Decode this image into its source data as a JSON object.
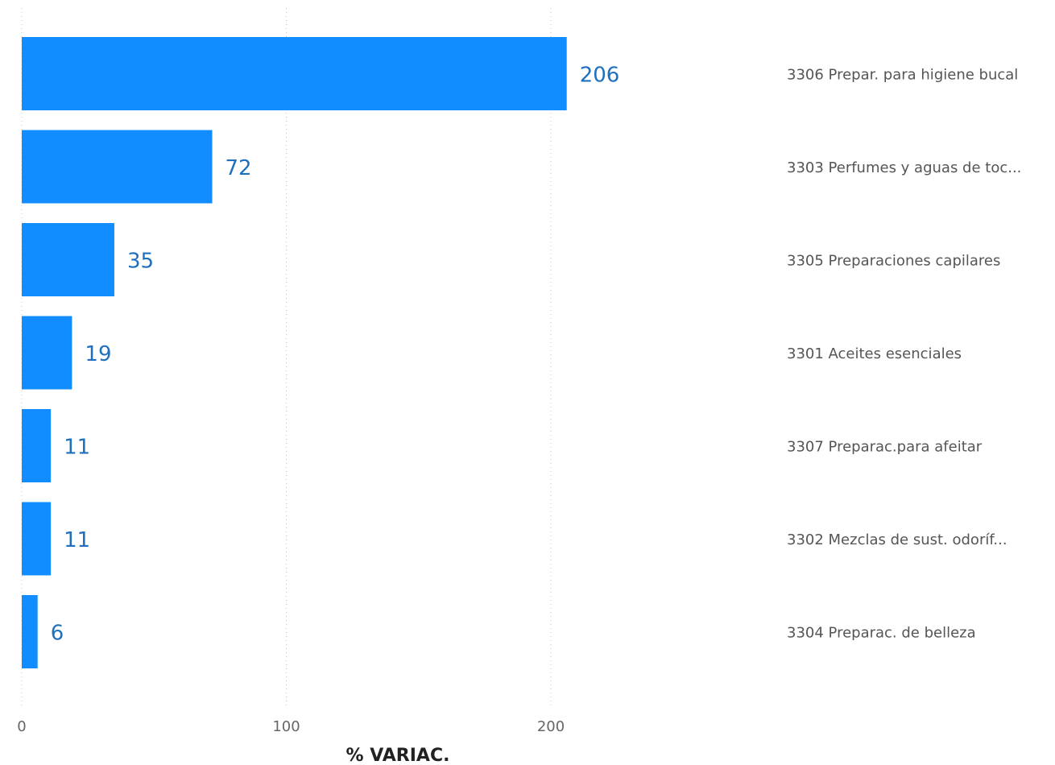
{
  "chart_data": {
    "type": "bar",
    "orientation": "horizontal",
    "categories": [
      "3306 Prepar. para higiene bucal",
      "3303 Perfumes y aguas de toc...",
      "3305 Preparaciones capilares",
      "3301 Aceites esenciales",
      "3307 Preparac.para afeitar",
      "3302 Mezclas de sust. odoríf...",
      "3304 Preparac. de belleza"
    ],
    "values": [
      206,
      72,
      35,
      19,
      11,
      11,
      6
    ],
    "data_labels": [
      "206",
      "72",
      "35",
      "19",
      "11",
      "11",
      "6"
    ],
    "xlabel": "% VARIAC.",
    "ylabel": "",
    "xlim": [
      0,
      200
    ],
    "xticks": [
      "0",
      "100",
      "200"
    ],
    "grid": true,
    "category_label_position": "right",
    "bar_color": "#118dff",
    "label_color": "#1f6fbf"
  }
}
